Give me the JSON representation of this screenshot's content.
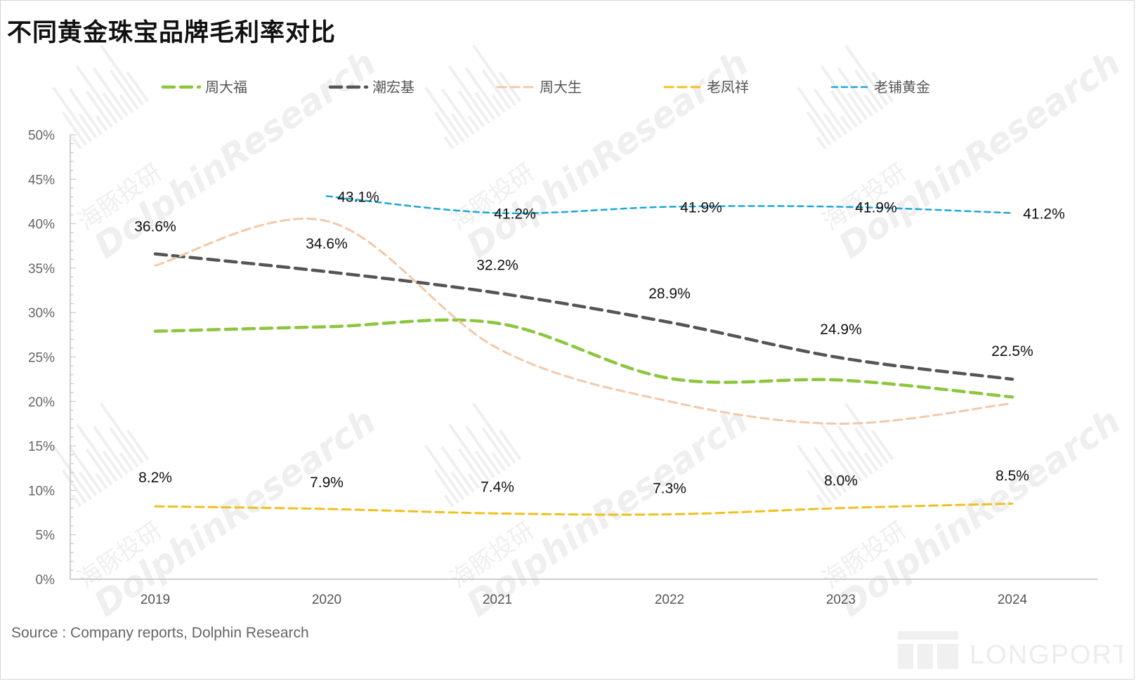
{
  "title": "不同黄金珠宝品牌毛利率对比",
  "source": "Source : Company reports, Dolphin Research",
  "watermark": {
    "cn": "海豚投研",
    "en": "DolphinResearch",
    "brand": "LONGPORT"
  },
  "chart_data": {
    "type": "line",
    "categories": [
      "2019",
      "2020",
      "2021",
      "2022",
      "2023",
      "2024"
    ],
    "ylim": [
      0,
      50
    ],
    "yticks": [
      0,
      5,
      10,
      15,
      20,
      25,
      30,
      35,
      40,
      45,
      50
    ],
    "ytick_labels": [
      "0%",
      "5%",
      "10%",
      "15%",
      "20%",
      "25%",
      "30%",
      "35%",
      "40%",
      "45%",
      "50%"
    ],
    "legend_position": "top",
    "grid": false,
    "series": [
      {
        "name": "周大福",
        "color": "#8cc63f",
        "values": [
          27.9,
          28.4,
          28.8,
          22.6,
          22.4,
          20.5
        ],
        "labels": null
      },
      {
        "name": "潮宏基",
        "color": "#555555",
        "values": [
          36.6,
          34.6,
          32.2,
          28.9,
          24.9,
          22.5
        ],
        "labels": [
          "36.6%",
          "34.6%",
          "32.2%",
          "28.9%",
          "24.9%",
          "22.5%"
        ]
      },
      {
        "name": "周大生",
        "color": "#f2c9a8",
        "values": [
          35.3,
          40.3,
          26.0,
          20.0,
          17.5,
          19.8
        ],
        "labels": null
      },
      {
        "name": "老凤祥",
        "color": "#f0c020",
        "values": [
          8.2,
          7.9,
          7.4,
          7.3,
          8.0,
          8.5
        ],
        "labels": [
          "8.2%",
          "7.9%",
          "7.4%",
          "7.3%",
          "8.0%",
          "8.5%"
        ]
      },
      {
        "name": "老铺黄金",
        "color": "#1ca7d6",
        "values": [
          null,
          43.1,
          41.2,
          41.9,
          41.9,
          41.2
        ],
        "labels": [
          null,
          "43.1%",
          "41.2%",
          "41.9%",
          "41.9%",
          "41.2%"
        ]
      }
    ]
  }
}
